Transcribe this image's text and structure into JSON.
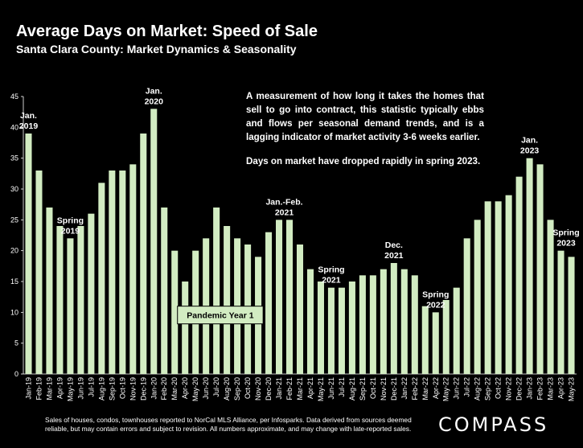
{
  "header": {
    "title": "Average Days on Market: Speed of Sale",
    "subtitle": "Santa Clara County: Market Dynamics & Seasonality"
  },
  "description": {
    "paragraph1": "A measurement of how long it takes the homes that sell to go into contract, this statistic typically ebbs and flows per seasonal demand trends, and is a lagging indicator of market activity 3-6 weeks earlier.",
    "paragraph2": "Days on market have dropped rapidly in spring 2023."
  },
  "footer": {
    "note": "Sales of houses, condos, townhouses reported to NorCal MLS Alliance, per Infosparks. Data derived from sources deemed reliable, but may contain errors and subject to revision. All numbers approximate, and may change with late-reported sales."
  },
  "logo": {
    "text": "COMPASS"
  },
  "colors": {
    "background": "#000000",
    "bar": "#d2ecc2",
    "text": "#ffffff"
  },
  "chart_data": {
    "type": "bar",
    "categories": [
      "Jan-19",
      "Feb-19",
      "Mar-19",
      "Apr-19",
      "May-19",
      "Jun-19",
      "Jul-19",
      "Aug-19",
      "Sep-19",
      "Oct-19",
      "Nov-19",
      "Dec-19",
      "Jan-20",
      "Feb-20",
      "Mar-20",
      "Apr-20",
      "May-20",
      "Jun-20",
      "Jul-20",
      "Aug-20",
      "Sep-20",
      "Oct-20",
      "Nov-20",
      "Dec-20",
      "Jan-21",
      "Feb-21",
      "Mar-21",
      "Apr-21",
      "May-21",
      "Jun-21",
      "Jul-21",
      "Aug-21",
      "Sep-21",
      "Oct-21",
      "Nov-21",
      "Dec-21",
      "Jan-22",
      "Feb-22",
      "Mar-22",
      "Apr-22",
      "May-22",
      "Jun-22",
      "Jul-22",
      "Aug-22",
      "Sep-22",
      "Oct-22",
      "Nov-22",
      "Dec-22",
      "Jan-23",
      "Feb-23",
      "Mar-23",
      "Apr-23",
      "May-23"
    ],
    "tick_labels": [
      "Jan-19",
      "Feb-19",
      "Mar-19",
      "Apr-19",
      "May-19",
      "Jun-19",
      "Jul-19",
      "Aug-19",
      "Sep-19",
      "Oct-19",
      "Nov-19",
      "Dec-19",
      "Jan-20",
      "Feb-20",
      "Mar-20",
      "Apr-20",
      "May-20",
      "Jun-20",
      "Jul-20",
      "Aug-20",
      "Sep-20",
      "Oct-20",
      "Nov-20",
      "Dec-20",
      "Jan-21",
      "Feb-21",
      "Mar-21",
      "Apr-21",
      "May-21",
      "Jun-21",
      "Jul-21",
      "Aug-21",
      "Sep-21",
      "Oct-21",
      "Nov-21",
      "Dec-21",
      "Jan-22",
      "Feb-22",
      "Mar-22",
      "Apr-22",
      "May-22",
      "Jun-22",
      "Jul-22",
      "Aug-22",
      "Sep-22",
      "Oct-22",
      "Nov-22",
      "Dec-22",
      "Jan-23",
      "Feb-23",
      "Mar-23",
      "Apr-23",
      "May-23"
    ],
    "values": [
      39,
      33,
      27,
      24,
      22,
      24,
      26,
      31,
      33,
      33,
      34,
      39,
      43,
      27,
      20,
      15,
      20,
      22,
      27,
      24,
      22,
      21,
      19,
      23,
      25,
      25,
      21,
      17,
      15,
      14,
      14,
      15,
      16,
      16,
      17,
      18,
      17,
      16,
      11,
      10,
      12,
      14,
      22,
      25,
      28,
      28,
      29,
      32,
      35,
      34,
      25,
      20,
      19
    ],
    "ylim": [
      0,
      45
    ],
    "yticks": [
      0,
      5,
      10,
      15,
      20,
      25,
      30,
      35,
      40,
      45
    ],
    "grid": false,
    "annotations": [
      {
        "lines": [
          "Jan.",
          "2019"
        ],
        "index": 0
      },
      {
        "lines": [
          "Spring",
          "2019"
        ],
        "index": 4
      },
      {
        "lines": [
          "Jan.",
          "2020"
        ],
        "index": 12
      },
      {
        "lines": [
          "Jan.-Feb.",
          "2021"
        ],
        "index": 24.5
      },
      {
        "lines": [
          "Spring",
          "2021"
        ],
        "index": 29
      },
      {
        "lines": [
          "Dec.",
          "2021"
        ],
        "index": 35
      },
      {
        "lines": [
          "Spring",
          "2022"
        ],
        "index": 39
      },
      {
        "lines": [
          "Jan.",
          "2023"
        ],
        "index": 48
      },
      {
        "lines": [
          "Spring",
          "2023"
        ],
        "index": 51.5
      }
    ],
    "pandemic_label": "Pandemic Year 1"
  }
}
